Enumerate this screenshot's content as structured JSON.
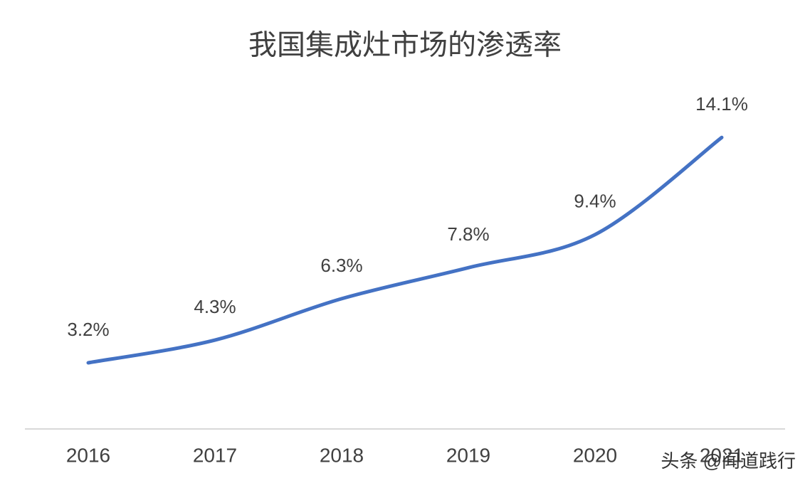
{
  "chart_data": {
    "type": "line",
    "title": "我国集成灶市场的渗透率",
    "categories": [
      "2016",
      "2017",
      "2018",
      "2019",
      "2020",
      "2021"
    ],
    "series": [
      {
        "color": "#4472c4",
        "values": [
          3.2,
          4.3,
          6.3,
          7.8,
          9.4,
          14.1
        ],
        "value_labels": [
          "3.2%",
          "4.3%",
          "6.3%",
          "7.8%",
          "9.4%",
          "14.1%"
        ]
      }
    ],
    "ylim": [
      0,
      16
    ],
    "smooth": true
  },
  "watermark": "头条 @闻道践行"
}
